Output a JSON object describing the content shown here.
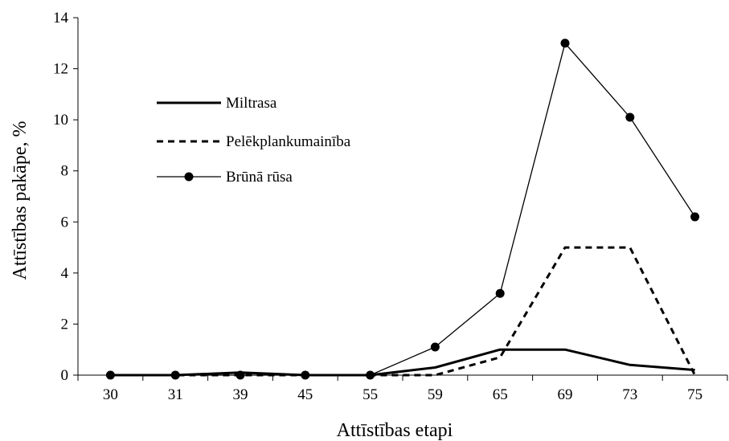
{
  "chart_data": {
    "type": "line",
    "xlabel": "Attīstības etapi",
    "ylabel": "Attīstības pakāpe, %",
    "categories": [
      "30",
      "31",
      "39",
      "45",
      "55",
      "59",
      "65",
      "69",
      "73",
      "75"
    ],
    "ylim": [
      0,
      14
    ],
    "yticks": [
      "0",
      "2",
      "4",
      "6",
      "8",
      "10",
      "12",
      "14"
    ],
    "grid": false,
    "legend_position": "upper-left",
    "series": [
      {
        "name": "Miltrasa",
        "style": "solid-thick",
        "color": "#000000",
        "values": [
          0,
          0,
          0.1,
          0,
          0,
          0.3,
          1.0,
          1.0,
          0.4,
          0.2
        ]
      },
      {
        "name": "Pelēkplankumainība",
        "style": "dashed",
        "color": "#000000",
        "values": [
          0,
          0,
          0,
          0,
          0,
          0,
          0.7,
          5.0,
          5.0,
          0
        ]
      },
      {
        "name": "Brūnā rūsa",
        "style": "thin-markers",
        "color": "#000000",
        "values": [
          0,
          0,
          0,
          0,
          0,
          1.1,
          3.2,
          13.0,
          10.1,
          6.2
        ]
      }
    ]
  }
}
